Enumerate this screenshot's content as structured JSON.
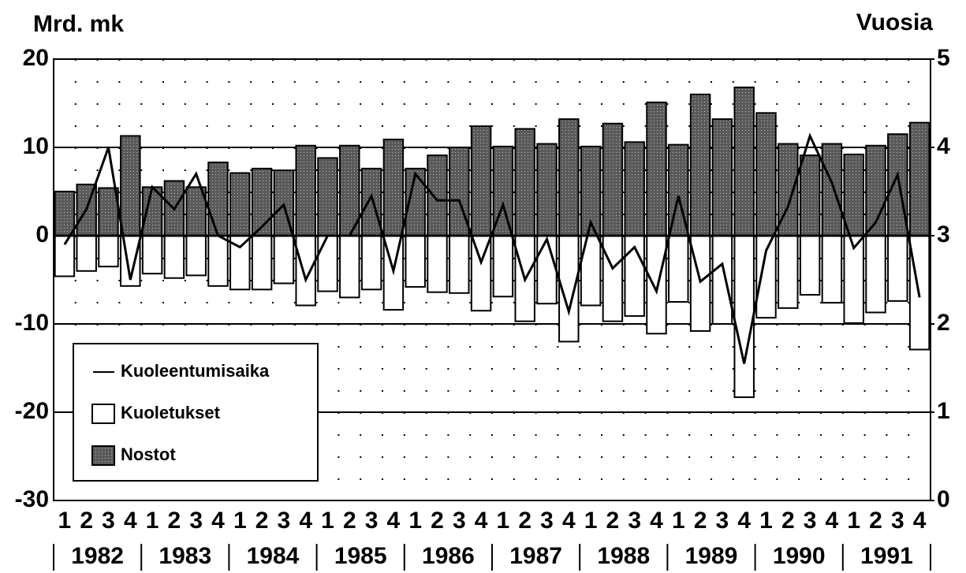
{
  "chart_data": {
    "type": "bar",
    "ylabel": "Mrd. mk",
    "y2label": "Vuosia",
    "categories": [
      "1",
      "2",
      "3",
      "4",
      "1",
      "2",
      "3",
      "4",
      "1",
      "2",
      "3",
      "4",
      "1",
      "2",
      "3",
      "4",
      "1",
      "2",
      "3",
      "4",
      "1",
      "2",
      "3",
      "4",
      "1",
      "2",
      "3",
      "4",
      "1",
      "2",
      "3",
      "4",
      "1",
      "2",
      "3",
      "4",
      "1",
      "2",
      "3",
      "4"
    ],
    "years": [
      "1982",
      "1983",
      "1984",
      "1985",
      "1986",
      "1987",
      "1988",
      "1989",
      "1990",
      "1991"
    ],
    "ylim": [
      -30,
      20
    ],
    "yticks": [
      -30,
      -20,
      -10,
      0,
      10,
      20
    ],
    "y2lim": [
      0,
      5
    ],
    "y2ticks": [
      0,
      1,
      2,
      3,
      4,
      5
    ],
    "grid": true,
    "legend": "lower left",
    "series": [
      {
        "name": "Kuoleentumisaika",
        "type": "line",
        "axis": "y2",
        "color": "#000000",
        "values": [
          2.9,
          3.3,
          4.0,
          2.5,
          3.55,
          3.3,
          3.7,
          3.0,
          2.87,
          3.1,
          3.35,
          2.5,
          3.0,
          3.0,
          3.45,
          2.6,
          3.7,
          3.4,
          3.4,
          2.7,
          3.35,
          2.5,
          2.96,
          2.14,
          3.15,
          2.63,
          2.87,
          2.37,
          3.45,
          2.48,
          2.68,
          1.55,
          2.83,
          3.33,
          4.13,
          3.6,
          2.86,
          3.15,
          3.69,
          2.3
        ]
      },
      {
        "name": "Kuoletukset",
        "type": "bar",
        "color": "#ffffff",
        "values": [
          -4.6,
          -4.0,
          -3.5,
          -5.7,
          -4.3,
          -4.8,
          -4.5,
          -5.7,
          -6.1,
          -6.1,
          -5.4,
          -7.9,
          -6.3,
          -7.0,
          -6.1,
          -8.4,
          -5.8,
          -6.4,
          -6.5,
          -8.5,
          -6.9,
          -9.7,
          -7.7,
          -12.0,
          -7.9,
          -9.7,
          -9.1,
          -11.1,
          -7.5,
          -10.8,
          -10.0,
          -18.3,
          -9.3,
          -8.2,
          -6.7,
          -7.6,
          -9.9,
          -8.7,
          -7.4,
          -12.9
        ]
      },
      {
        "name": "Nostot",
        "type": "bar",
        "color": "#5a5a5a",
        "values": [
          5.0,
          5.8,
          5.4,
          11.3,
          5.5,
          6.2,
          5.5,
          8.3,
          7.1,
          7.6,
          7.4,
          10.2,
          8.8,
          10.2,
          7.6,
          10.9,
          7.6,
          9.1,
          10.0,
          12.4,
          10.1,
          12.1,
          10.4,
          13.2,
          10.1,
          12.7,
          10.6,
          15.1,
          10.3,
          16.0,
          13.2,
          16.8,
          13.9,
          10.4,
          9.1,
          10.4,
          9.2,
          10.2,
          11.5,
          12.8
        ]
      }
    ]
  }
}
